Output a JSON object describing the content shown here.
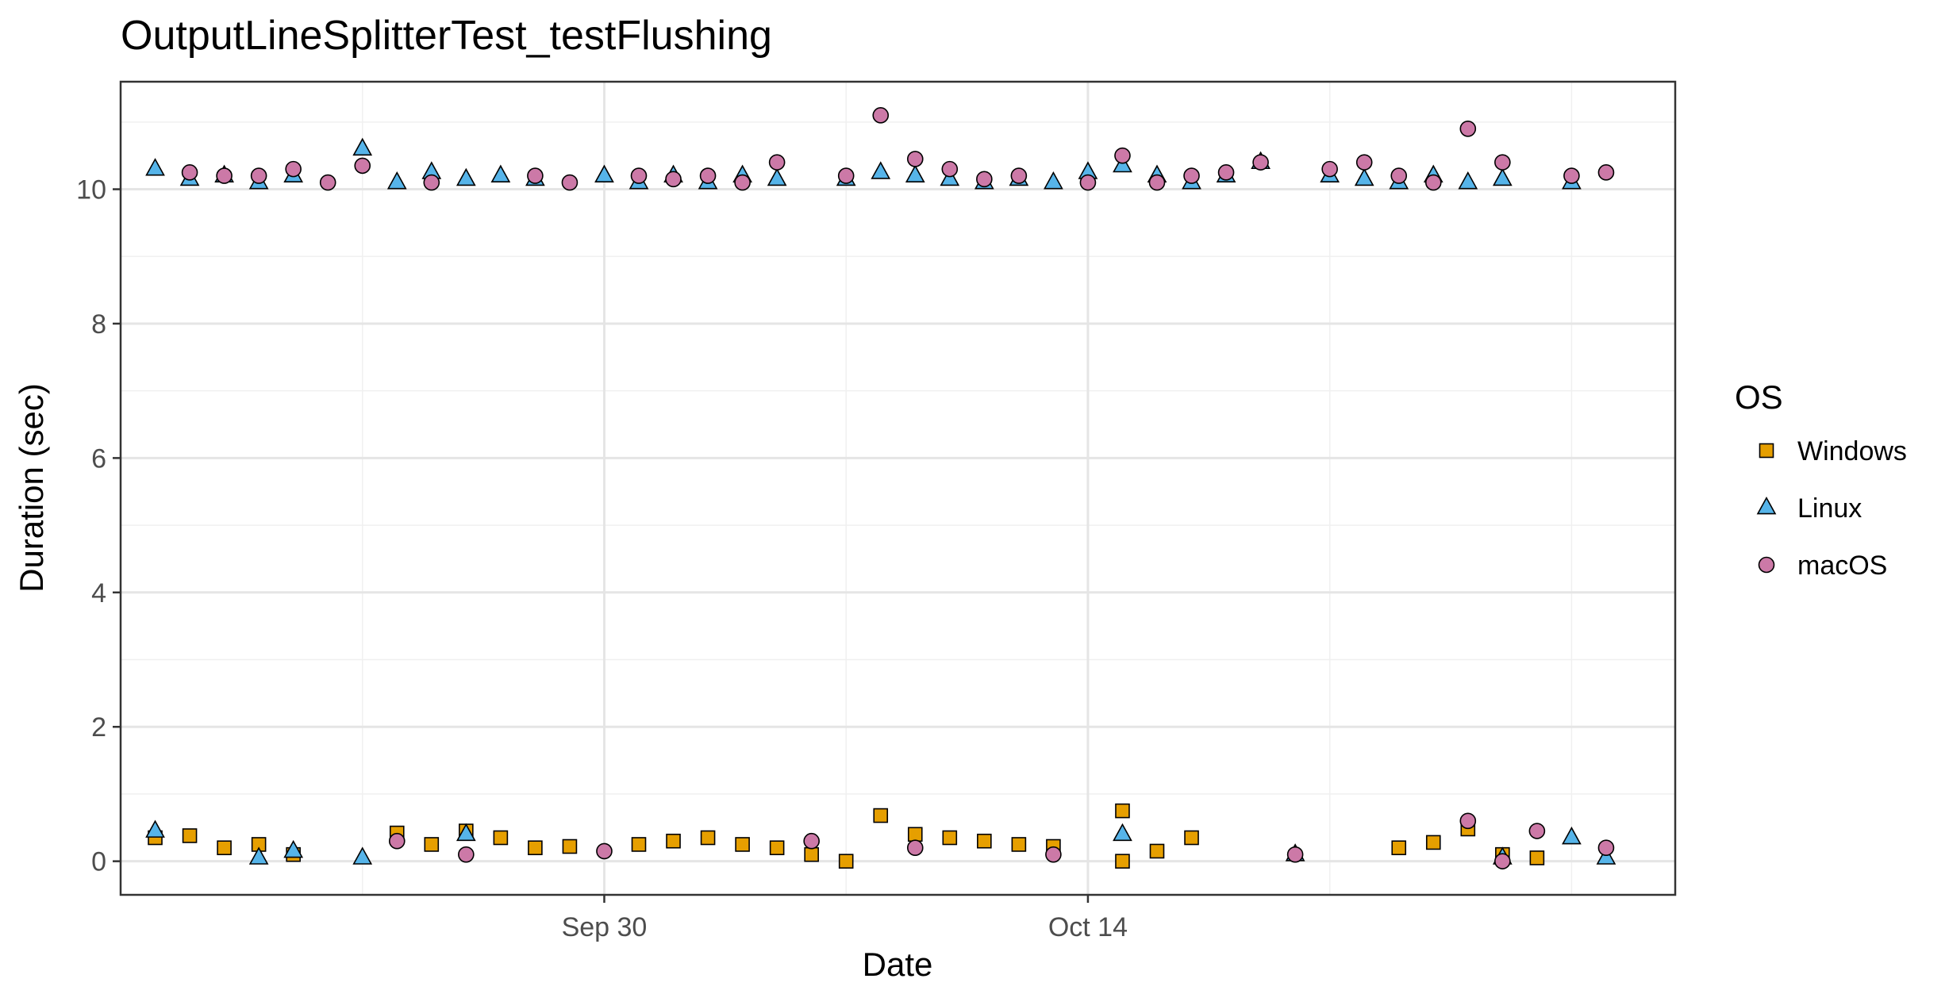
{
  "chart_data": {
    "type": "scatter",
    "title": "OutputLineSplitterTest_testFlushing",
    "xlabel": "Date",
    "ylabel": "Duration (sec)",
    "x_axis": {
      "type": "date",
      "range": [
        "2019-09-16",
        "2019-10-31"
      ],
      "major_ticks": [
        {
          "date": "2019-09-30",
          "label": "Sep 30"
        },
        {
          "date": "2019-10-14",
          "label": "Oct 14"
        }
      ],
      "minor_ticks": [
        "2019-09-23",
        "2019-10-07",
        "2019-10-21",
        "2019-10-28"
      ]
    },
    "y_axis": {
      "range": [
        -0.5,
        11.6
      ],
      "ticks": [
        0,
        2,
        4,
        6,
        8,
        10
      ],
      "tick_labels": [
        "0",
        "2",
        "4",
        "6",
        "8",
        "10"
      ]
    },
    "grid": true,
    "legend": {
      "title": "OS",
      "position": "right",
      "entries": [
        {
          "label": "Windows",
          "shape": "square",
          "color": "#E69F00"
        },
        {
          "label": "Linux",
          "shape": "triangle",
          "color": "#56B4E9"
        },
        {
          "label": "macOS",
          "shape": "circle",
          "color": "#CC79A7"
        }
      ]
    },
    "series": [
      {
        "name": "Windows",
        "shape": "square",
        "color": "#E69F00",
        "x": [
          "2019-09-17",
          "2019-09-18",
          "2019-09-19",
          "2019-09-20",
          "2019-09-21",
          "2019-09-24",
          "2019-09-25",
          "2019-09-26",
          "2019-09-27",
          "2019-09-28",
          "2019-09-29",
          "2019-10-01",
          "2019-10-02",
          "2019-10-03",
          "2019-10-04",
          "2019-10-05",
          "2019-10-06",
          "2019-10-07",
          "2019-10-08",
          "2019-10-09",
          "2019-10-10",
          "2019-10-11",
          "2019-10-12",
          "2019-10-13",
          "2019-10-15",
          "2019-10-15",
          "2019-10-16",
          "2019-10-17",
          "2019-10-23",
          "2019-10-24",
          "2019-10-25",
          "2019-10-26",
          "2019-10-27"
        ],
        "y": [
          0.35,
          0.38,
          0.2,
          0.25,
          0.1,
          0.42,
          0.25,
          0.45,
          0.35,
          0.2,
          0.22,
          0.25,
          0.3,
          0.35,
          0.25,
          0.2,
          0.1,
          0.0,
          0.68,
          0.4,
          0.35,
          0.3,
          0.25,
          0.22,
          0.75,
          0.0,
          0.15,
          0.35,
          0.2,
          0.28,
          0.48,
          0.1,
          0.05
        ]
      },
      {
        "name": "Linux",
        "shape": "triangle",
        "color": "#56B4E9",
        "x": [
          "2019-09-17",
          "2019-09-17",
          "2019-09-18",
          "2019-09-19",
          "2019-09-20",
          "2019-09-20",
          "2019-09-21",
          "2019-09-21",
          "2019-09-23",
          "2019-09-23",
          "2019-09-24",
          "2019-09-25",
          "2019-09-26",
          "2019-09-26",
          "2019-09-27",
          "2019-09-28",
          "2019-09-30",
          "2019-10-01",
          "2019-10-02",
          "2019-10-03",
          "2019-10-04",
          "2019-10-05",
          "2019-10-07",
          "2019-10-08",
          "2019-10-09",
          "2019-10-10",
          "2019-10-11",
          "2019-10-12",
          "2019-10-13",
          "2019-10-14",
          "2019-10-15",
          "2019-10-15",
          "2019-10-16",
          "2019-10-17",
          "2019-10-18",
          "2019-10-19",
          "2019-10-20",
          "2019-10-21",
          "2019-10-22",
          "2019-10-23",
          "2019-10-24",
          "2019-10-25",
          "2019-10-26",
          "2019-10-26",
          "2019-10-28",
          "2019-10-28",
          "2019-10-29"
        ],
        "y": [
          10.3,
          0.45,
          10.15,
          10.2,
          10.1,
          0.05,
          10.2,
          0.15,
          10.6,
          0.05,
          10.1,
          10.25,
          10.15,
          0.4,
          10.2,
          10.15,
          10.2,
          10.1,
          10.2,
          10.1,
          10.2,
          10.15,
          10.15,
          10.25,
          10.2,
          10.15,
          10.1,
          10.15,
          10.1,
          10.25,
          10.35,
          0.4,
          10.2,
          10.1,
          10.2,
          10.4,
          0.1,
          10.2,
          10.15,
          10.1,
          10.2,
          10.1,
          10.15,
          0.05,
          10.1,
          0.35,
          0.05
        ]
      },
      {
        "name": "macOS",
        "shape": "circle",
        "color": "#CC79A7",
        "x": [
          "2019-09-18",
          "2019-09-19",
          "2019-09-20",
          "2019-09-21",
          "2019-09-22",
          "2019-09-23",
          "2019-09-24",
          "2019-09-25",
          "2019-09-26",
          "2019-09-28",
          "2019-09-29",
          "2019-09-30",
          "2019-10-01",
          "2019-10-02",
          "2019-10-03",
          "2019-10-04",
          "2019-10-05",
          "2019-10-06",
          "2019-10-07",
          "2019-10-08",
          "2019-10-09",
          "2019-10-09",
          "2019-10-10",
          "2019-10-11",
          "2019-10-12",
          "2019-10-13",
          "2019-10-14",
          "2019-10-15",
          "2019-10-16",
          "2019-10-17",
          "2019-10-18",
          "2019-10-19",
          "2019-10-20",
          "2019-10-21",
          "2019-10-22",
          "2019-10-23",
          "2019-10-24",
          "2019-10-25",
          "2019-10-25",
          "2019-10-26",
          "2019-10-26",
          "2019-10-27",
          "2019-10-28",
          "2019-10-29",
          "2019-10-29"
        ],
        "y": [
          10.25,
          10.2,
          10.2,
          10.3,
          10.1,
          10.35,
          0.3,
          10.1,
          0.1,
          10.2,
          10.1,
          0.15,
          10.2,
          10.15,
          10.2,
          10.1,
          10.4,
          0.3,
          10.2,
          11.1,
          10.45,
          0.2,
          10.3,
          10.15,
          10.2,
          0.1,
          10.1,
          10.5,
          10.1,
          10.2,
          10.25,
          10.4,
          0.1,
          10.3,
          10.4,
          10.2,
          10.1,
          10.9,
          0.6,
          10.4,
          0.0,
          0.45,
          10.2,
          10.25,
          0.2
        ]
      }
    ]
  }
}
